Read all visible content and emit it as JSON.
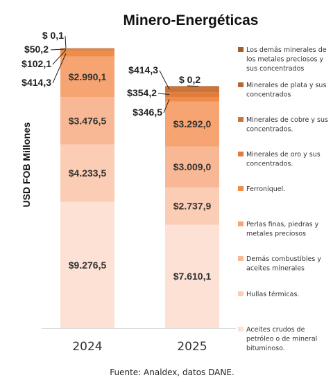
{
  "chart_data": {
    "type": "bar",
    "stacked": true,
    "title": "Minero-Energéticas",
    "ylabel": "USD FOB Millones",
    "categories": [
      "2024",
      "2025"
    ],
    "series": [
      {
        "name": "Aceites crudos de petróleo o de mineral bituminoso.",
        "values": [
          9276.5,
          7610.1
        ],
        "labels": [
          "$9.276,5",
          "$7.610,1"
        ],
        "color": "#fde1d4"
      },
      {
        "name": "Hullas térmicas.",
        "values": [
          4233.5,
          2737.9
        ],
        "labels": [
          "$4.233,5",
          "$2.737,9"
        ],
        "color": "#fbcdb4"
      },
      {
        "name": "Demás combustibles y aceites minerales",
        "values": [
          3476.5,
          3009.0
        ],
        "labels": [
          "$3.476,5",
          "$3.009,0"
        ],
        "color": "#f8b895"
      },
      {
        "name": "Perlas finas, piedras y metales preciosos",
        "values": [
          2990.1,
          3292.0
        ],
        "labels": [
          "$2.990,1",
          "$3.292,0"
        ],
        "color": "#f5a472"
      },
      {
        "name": "Ferroníquel.",
        "values": [
          414.3,
          346.5
        ],
        "labels": [
          "$414,3",
          "$346,5"
        ],
        "color": "#ef8c4b"
      },
      {
        "name": "Minerales de oro y sus concentrados.",
        "values": [
          102.1,
          354.2
        ],
        "labels": [
          "$102,1",
          "$354,2"
        ],
        "color": "#e07d3c"
      },
      {
        "name": "Minerales de cobre y sus concentrados.",
        "values": [
          50.2,
          414.3
        ],
        "labels": [
          "$50,2",
          "$414,3"
        ],
        "color": "#c9743a"
      },
      {
        "name": "Minerales de plata y sus concentrados",
        "values": [
          0.1,
          0.2
        ],
        "labels": [
          "$ 0,1",
          "$ 0,2"
        ],
        "color": "#b46a32"
      },
      {
        "name": "Los demás minerales de los metales preciosos y sus concentrados",
        "values": [
          0,
          0
        ],
        "labels": [
          "",
          ""
        ],
        "color": "#a25e2a"
      }
    ],
    "legend_position": "right",
    "grid": false
  },
  "footer": {
    "source": "Fuente: Analdex, datos DANE."
  }
}
